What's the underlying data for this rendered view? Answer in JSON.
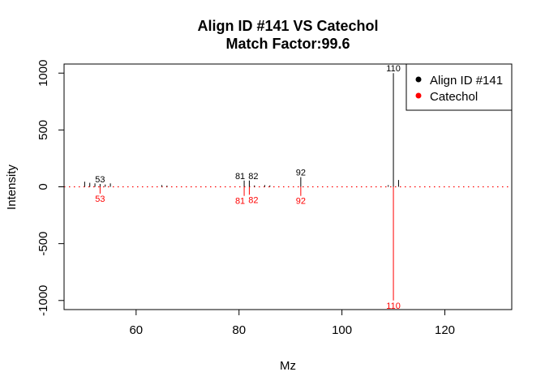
{
  "chart_data": {
    "type": "mirror-spectrum",
    "title": "Align ID #141 VS Catechol",
    "subtitle": "Match Factor:99.6",
    "xlabel": "Mz",
    "ylabel": "Intensity",
    "xlim": [
      46,
      133
    ],
    "ylim": [
      -1080,
      1080
    ],
    "x_ticks": [
      60,
      80,
      100,
      120
    ],
    "y_ticks": [
      -1000,
      -500,
      0,
      500,
      1000
    ],
    "grid": false,
    "legend_position": "top-right",
    "series": [
      {
        "name": "Align ID #141",
        "color": "#000000",
        "peaks": [
          {
            "mz": 50,
            "intensity": 45
          },
          {
            "mz": 51,
            "intensity": 35
          },
          {
            "mz": 52,
            "intensity": 30
          },
          {
            "mz": 53,
            "intensity": 25
          },
          {
            "mz": 54,
            "intensity": 20
          },
          {
            "mz": 55,
            "intensity": 30
          },
          {
            "mz": 65,
            "intensity": 15
          },
          {
            "mz": 66,
            "intensity": 10
          },
          {
            "mz": 81,
            "intensity": 55
          },
          {
            "mz": 82,
            "intensity": 55
          },
          {
            "mz": 83,
            "intensity": 12
          },
          {
            "mz": 85,
            "intensity": 15
          },
          {
            "mz": 86,
            "intensity": 12
          },
          {
            "mz": 92,
            "intensity": 85
          },
          {
            "mz": 109,
            "intensity": 15
          },
          {
            "mz": 110,
            "intensity": 1000
          },
          {
            "mz": 111,
            "intensity": 60
          }
        ],
        "labeled_peaks": [
          53,
          81,
          82,
          92,
          110
        ]
      },
      {
        "name": "Catechol",
        "color": "#ff0000",
        "peaks": [
          {
            "mz": 53,
            "intensity": -60
          },
          {
            "mz": 81,
            "intensity": -80
          },
          {
            "mz": 82,
            "intensity": -70
          },
          {
            "mz": 92,
            "intensity": -80
          },
          {
            "mz": 110,
            "intensity": -1000
          }
        ],
        "labeled_peaks": [
          53,
          81,
          82,
          92,
          110
        ]
      }
    ],
    "legend": [
      "Align ID #141",
      "Catechol"
    ],
    "baseline": {
      "style": "dotted",
      "color": "#ff0000",
      "y": 0
    }
  }
}
